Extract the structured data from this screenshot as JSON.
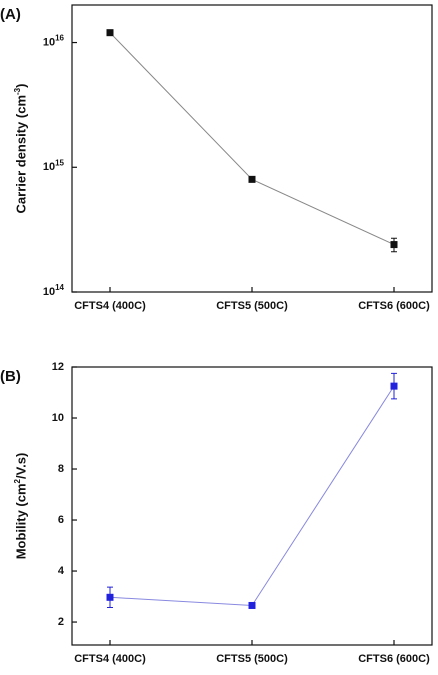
{
  "chart_data": [
    {
      "type": "line",
      "panel_label": "(A)",
      "ylabel": "Carrier density (cm^-3)",
      "log": true,
      "categories": [
        "CFTS4 (400C)",
        "CFTS5 (500C)",
        "CFTS6 (600C)"
      ],
      "values": [
        1.2e+16,
        800000000000000.0,
        240000000000000.0
      ],
      "errors": [
        300000000000000.0,
        30000000000000.0,
        30000000000000.0
      ],
      "color": "#111111",
      "line_color": "#888888",
      "ylim": [
        100000000000000.0,
        2e+16
      ],
      "yticks": [
        {
          "value": 100000000000000.0,
          "label": "10^14"
        },
        {
          "value": 1000000000000000.0,
          "label": "10^15"
        },
        {
          "value": 1e+16,
          "label": "10^16"
        }
      ]
    },
    {
      "type": "line",
      "panel_label": "(B)",
      "ylabel": "Mobility (cm^2/V.s)",
      "log": false,
      "categories": [
        "CFTS4 (400C)",
        "CFTS5 (500C)",
        "CFTS6 (600C)"
      ],
      "values": [
        2.97,
        2.65,
        11.25
      ],
      "errors": [
        0.4,
        0.08,
        0.5
      ],
      "color": "#2222dd",
      "line_color": "#8888e0",
      "ylim": [
        1.1,
        12
      ],
      "yticks": [
        2,
        4,
        6,
        8,
        10,
        12
      ]
    }
  ]
}
